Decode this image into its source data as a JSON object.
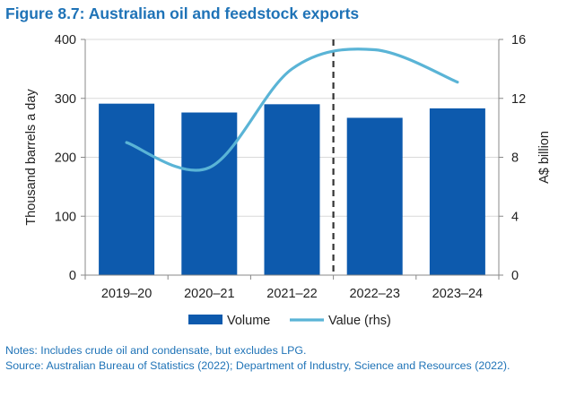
{
  "figure_title": "Figure 8.7: Australian oil and feedstock exports",
  "notes": {
    "line1": "Notes: Includes crude oil and condensate, but excludes LPG.",
    "line2": "Source: Australian Bureau of Statistics (2022); Department of Industry, Science and Resources (2022)."
  },
  "colors": {
    "title": "#1f73b7",
    "volume_bar": "#0d5aad",
    "value_line": "#5ab4d6",
    "gridline": "#d9d9d9",
    "forecast_divider": "#333333"
  },
  "chart_data": {
    "type": "bar",
    "categories": [
      "2019–20",
      "2020–21",
      "2021–22",
      "2022–23",
      "2023–24"
    ],
    "series": [
      {
        "name": "Volume",
        "type": "bar",
        "axis": "left",
        "values": [
          291,
          276,
          290,
          267,
          283
        ]
      },
      {
        "name": "Value (rhs)",
        "type": "line",
        "axis": "right",
        "smooth": true,
        "values": [
          9.0,
          7.3,
          14.0,
          15.3,
          13.1
        ]
      }
    ],
    "ylabel": "Thousand barrels a day",
    "y2label": "A$ billion",
    "ylim": [
      0,
      400
    ],
    "y2lim": [
      0,
      16
    ],
    "yticks": [
      0,
      100,
      200,
      300,
      400
    ],
    "y2ticks": [
      0,
      4,
      8,
      12,
      16
    ],
    "grid": true,
    "legend": "bottom",
    "forecast_divider_between": [
      "2021–22",
      "2022–23"
    ]
  }
}
